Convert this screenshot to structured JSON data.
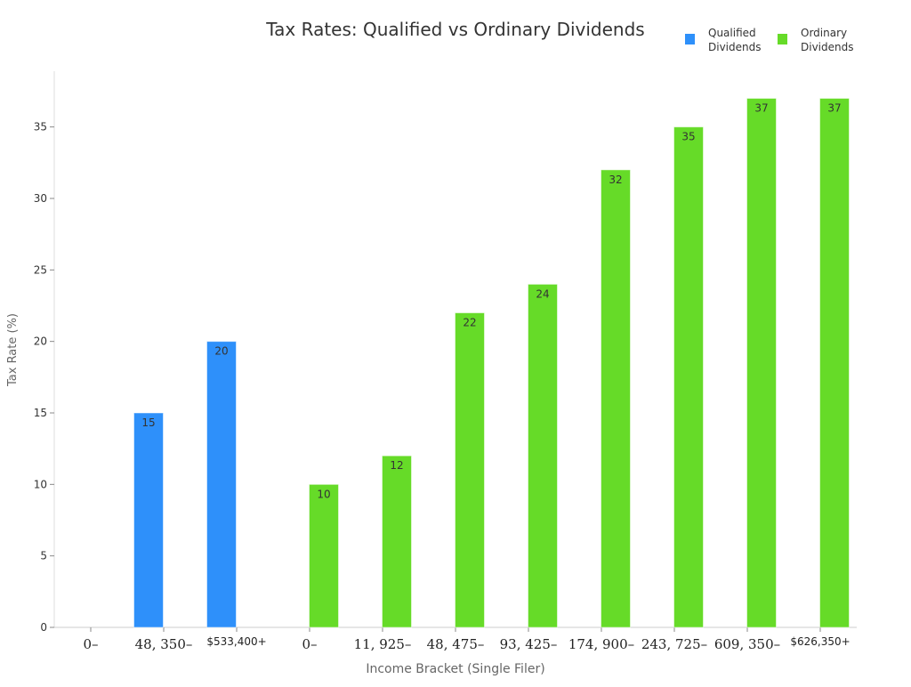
{
  "chart_data": {
    "type": "bar",
    "title": "Tax Rates: Qualified vs Ordinary Dividends",
    "xlabel": "Income Bracket (Single Filer)",
    "ylabel": "Tax Rate (%)",
    "ylim": [
      0,
      38.9
    ],
    "yticks": [
      0,
      5,
      10,
      15,
      20,
      25,
      30,
      35
    ],
    "grid": false,
    "legend_position": "top-right",
    "categories": [
      "0–",
      "48, 350–",
      "$533,400+",
      "0–",
      "11, 925–",
      "48, 475–",
      "93, 425–",
      "174, 900–",
      "243, 725–",
      "609, 350–",
      "$626,350+"
    ],
    "category_math_style": [
      true,
      true,
      false,
      true,
      true,
      true,
      true,
      true,
      true,
      true,
      false
    ],
    "series": [
      {
        "name": "Qualified Dividends",
        "legend_lines": [
          "Qualified",
          "Dividends"
        ],
        "color": "#2e90fa",
        "values": [
          0,
          15,
          20,
          null,
          null,
          null,
          null,
          null,
          null,
          null,
          null
        ]
      },
      {
        "name": "Ordinary Dividends",
        "legend_lines": [
          "Ordinary",
          "Dividends"
        ],
        "color": "#66db28",
        "values": [
          null,
          null,
          null,
          10,
          12,
          22,
          24,
          32,
          35,
          37,
          37
        ]
      }
    ]
  }
}
